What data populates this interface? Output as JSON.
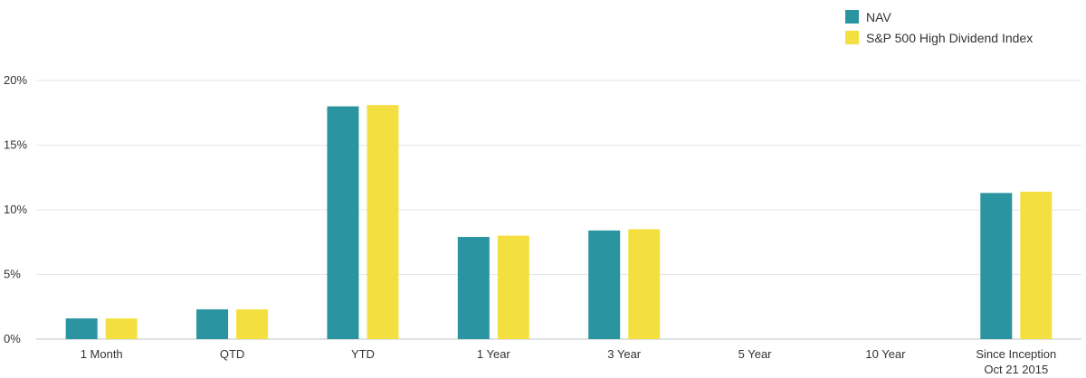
{
  "chart_data": {
    "type": "bar",
    "title": "",
    "xlabel": "",
    "ylabel": "",
    "ylim": [
      0,
      20
    ],
    "yticks": [
      "0%",
      "5%",
      "10%",
      "15%",
      "20%"
    ],
    "grid": true,
    "legend_position": "top-right",
    "categories": [
      [
        "1 Month"
      ],
      [
        "QTD"
      ],
      [
        "YTD"
      ],
      [
        "1 Year"
      ],
      [
        "3 Year"
      ],
      [
        "5 Year"
      ],
      [
        "10 Year"
      ],
      [
        "Since Inception",
        "Oct 21 2015"
      ]
    ],
    "series": [
      {
        "name": "NAV",
        "color": "#2A94A1",
        "values": [
          1.6,
          2.3,
          18.0,
          7.9,
          8.4,
          null,
          null,
          11.3
        ]
      },
      {
        "name": "S&P 500 High Dividend Index",
        "color": "#F3E040",
        "values": [
          1.6,
          2.3,
          18.1,
          8.0,
          8.5,
          null,
          null,
          11.4
        ]
      }
    ]
  }
}
